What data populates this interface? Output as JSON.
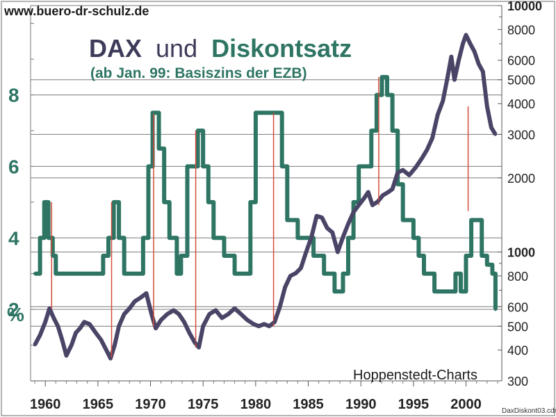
{
  "website": "www.buero-dr-schulz.de",
  "title_part1": "DAX",
  "title_part2": "und",
  "title_part3": "Diskontsatz",
  "subtitle": "(ab Jan. 99: Basiszins der EZB)",
  "source": "Hoppenstedt-Charts",
  "file_label": "DaxDiskont03.cdr",
  "percent_label": "%",
  "colors": {
    "dax": "#4a4566",
    "rate": "#2e7564",
    "grid": "#7a7a7a",
    "link": "#d44b3b",
    "title_dark": "#3d3b5a",
    "title_green": "#2e7564"
  },
  "chart_data": {
    "type": "line",
    "x_ticks": [
      "1960",
      "1965",
      "1970",
      "1975",
      "1980",
      "1985",
      "1990",
      "1995",
      "2000"
    ],
    "xlim": [
      1958.6,
      2003.4
    ],
    "y_left_label": "%",
    "y_left_ticks": [
      "2",
      "4",
      "6",
      "8"
    ],
    "y_left_lim": [
      0,
      10.5
    ],
    "y_right_scale": "log",
    "y_right_ticks": [
      "300",
      "400",
      "500",
      "600",
      "800",
      "1000",
      "2000",
      "3000",
      "4000",
      "5000",
      "6000",
      "8000",
      "10000"
    ],
    "y_right_lim": [
      300,
      10000
    ],
    "series": [
      {
        "name": "DAX",
        "axis": "right",
        "x": [
          1959.0,
          1959.5,
          1960.0,
          1960.4,
          1960.8,
          1961.2,
          1961.6,
          1962.0,
          1962.5,
          1962.9,
          1963.3,
          1963.7,
          1964.2,
          1964.8,
          1965.3,
          1965.8,
          1966.2,
          1966.6,
          1967.0,
          1967.5,
          1968.0,
          1968.5,
          1969.0,
          1969.6,
          1970.1,
          1970.5,
          1971.0,
          1971.6,
          1972.2,
          1972.7,
          1973.2,
          1973.7,
          1974.2,
          1974.6,
          1975.0,
          1975.6,
          1976.2,
          1976.8,
          1977.4,
          1978.0,
          1978.6,
          1979.2,
          1979.8,
          1980.3,
          1980.8,
          1981.3,
          1981.8,
          1982.3,
          1982.8,
          1983.3,
          1983.8,
          1984.3,
          1984.8,
          1985.3,
          1985.8,
          1986.3,
          1986.8,
          1987.3,
          1987.8,
          1988.3,
          1988.8,
          1989.3,
          1989.8,
          1990.3,
          1990.7,
          1991.1,
          1991.6,
          1992.1,
          1992.6,
          1993.0,
          1993.5,
          1994.0,
          1994.6,
          1995.2,
          1995.8,
          1996.3,
          1996.8,
          1997.3,
          1997.8,
          1998.2,
          1998.6,
          1998.9,
          1999.3,
          1999.7,
          2000.0,
          2000.4,
          2000.8,
          2001.2,
          2001.6,
          2002.0,
          2002.4,
          2002.8
        ],
        "values": [
          420,
          460,
          520,
          590,
          540,
          500,
          440,
          380,
          420,
          470,
          490,
          520,
          510,
          470,
          440,
          400,
          370,
          420,
          500,
          560,
          590,
          630,
          650,
          680,
          560,
          490,
          530,
          560,
          580,
          560,
          520,
          470,
          430,
          410,
          500,
          560,
          580,
          540,
          560,
          590,
          560,
          530,
          510,
          500,
          510,
          500,
          520,
          600,
          720,
          800,
          820,
          860,
          1000,
          1150,
          1400,
          1380,
          1250,
          1200,
          1000,
          1150,
          1300,
          1450,
          1550,
          1650,
          1750,
          1550,
          1600,
          1700,
          1750,
          1800,
          2100,
          2150,
          2050,
          2200,
          2400,
          2600,
          2900,
          3600,
          4100,
          5000,
          6200,
          5000,
          6000,
          7000,
          7600,
          7000,
          6500,
          5800,
          5400,
          3900,
          3200,
          3000
        ]
      },
      {
        "name": "Diskontsatz",
        "axis": "left",
        "x": [
          1959.0,
          1959.5,
          1959.9,
          1960.3,
          1960.7,
          1961.0,
          1962.0,
          1964.0,
          1965.0,
          1965.5,
          1966.0,
          1966.5,
          1967.0,
          1967.5,
          1968.0,
          1969.0,
          1969.3,
          1969.8,
          1970.2,
          1970.8,
          1971.3,
          1971.8,
          1972.5,
          1972.9,
          1973.5,
          1974.5,
          1975.0,
          1975.5,
          1976.0,
          1977.0,
          1978.0,
          1979.0,
          1979.5,
          1980.0,
          1981.0,
          1982.0,
          1982.5,
          1983.0,
          1984.0,
          1985.0,
          1985.5,
          1986.5,
          1987.0,
          1987.5,
          1988.3,
          1988.8,
          1989.3,
          1989.8,
          1990.5,
          1991.0,
          1991.5,
          1992.0,
          1992.5,
          1993.0,
          1993.5,
          1994.0,
          1995.0,
          1995.5,
          1996.0,
          1997.0,
          1998.0,
          1998.8,
          1999.0,
          1999.5,
          2000.0,
          2000.5,
          2001.0,
          2001.5,
          2002.0,
          2002.5,
          2002.8
        ],
        "values": [
          3.0,
          4.0,
          5.0,
          4.0,
          3.5,
          3.0,
          3.0,
          3.0,
          3.0,
          3.5,
          4.0,
          5.0,
          4.0,
          3.0,
          3.0,
          3.0,
          4.0,
          6.0,
          7.5,
          6.5,
          5.0,
          4.0,
          3.0,
          3.5,
          6.0,
          7.0,
          6.0,
          5.0,
          4.0,
          3.5,
          3.0,
          3.0,
          5.0,
          7.5,
          7.5,
          7.5,
          6.0,
          4.5,
          4.0,
          4.0,
          3.5,
          3.0,
          3.0,
          2.5,
          3.0,
          4.0,
          5.0,
          6.0,
          6.0,
          7.0,
          8.0,
          8.5,
          8.0,
          7.0,
          5.5,
          4.5,
          4.0,
          3.5,
          3.0,
          2.5,
          2.5,
          2.5,
          3.0,
          2.5,
          3.5,
          4.5,
          4.5,
          3.5,
          3.25,
          3.0,
          2.0
        ]
      }
    ],
    "links": [
      {
        "x": 1960.6,
        "rate": 5.0,
        "dax": 590
      },
      {
        "x": 1966.3,
        "rate": 5.0,
        "dax": 370
      },
      {
        "x": 1970.3,
        "rate": 7.5,
        "dax": 500
      },
      {
        "x": 1974.3,
        "rate": 7.0,
        "dax": 410
      },
      {
        "x": 1981.7,
        "rate": 7.5,
        "dax": 500
      },
      {
        "x": 1991.7,
        "rate": 8.5,
        "dax": 1550
      },
      {
        "x": 2000.2,
        "rate": 4.75,
        "dax": 3900
      }
    ]
  }
}
